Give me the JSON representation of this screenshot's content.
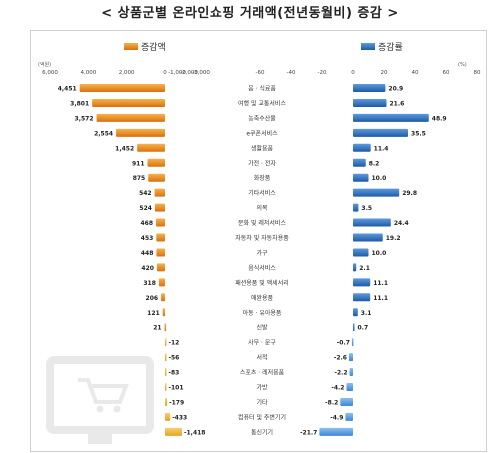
{
  "page_title": "< 상품군별 온라인쇼핑 거래액(전년동월비) 증감 >",
  "chart_data": [
    {
      "type": "bar",
      "orientation": "horizontal",
      "legend": "증감액",
      "unit_label": "(억원)",
      "ticks": [
        "6,000",
        "4,000",
        "2,000",
        "0",
        "-1,000",
        "-2,000",
        "-3,000"
      ],
      "categories": [
        "음 · 식료품",
        "여행 및 교통서비스",
        "농축수산물",
        "e쿠폰서비스",
        "생활용품",
        "가전 · 전자",
        "화장품",
        "기타서비스",
        "의복",
        "문화 및 레저서비스",
        "자동차 및 자동차용품",
        "가구",
        "음식서비스",
        "패션용품 및 액세서리",
        "애완용품",
        "아동 · 유아용품",
        "신발",
        "사무 · 문구",
        "서적",
        "스포츠 · 레저용품",
        "가방",
        "기타",
        "컴퓨터 및 주변기기",
        "통신기기"
      ],
      "values": [
        4451,
        3801,
        3572,
        2554,
        1452,
        911,
        875,
        542,
        524,
        468,
        453,
        448,
        420,
        318,
        206,
        121,
        21,
        -12,
        -56,
        -83,
        -101,
        -179,
        -433,
        -1418
      ],
      "value_labels": [
        "4,451",
        "3,801",
        "3,572",
        "2,554",
        "1,452",
        "911",
        "875",
        "542",
        "524",
        "468",
        "453",
        "448",
        "420",
        "318",
        "206",
        "121",
        "21",
        "-12",
        "-56",
        "-83",
        "-101",
        "-179",
        "-433",
        "-1,418"
      ],
      "colors": {
        "positive": "#e8871e",
        "negative": "#f2b23c"
      }
    },
    {
      "type": "bar",
      "orientation": "horizontal",
      "legend": "증감률",
      "unit_label": "(%)",
      "ticks": [
        "-60",
        "-40",
        "-20",
        "0",
        "20",
        "40",
        "60",
        "80",
        "100"
      ],
      "categories": [
        "음 · 식료품",
        "여행 및 교통서비스",
        "농축수산물",
        "e쿠폰서비스",
        "생활용품",
        "가전 · 전자",
        "화장품",
        "기타서비스",
        "의복",
        "문화 및 레저서비스",
        "자동차 및 자동차용품",
        "가구",
        "음식서비스",
        "패션용품 및 액세서리",
        "애완용품",
        "아동 · 유아용품",
        "신발",
        "사무 · 문구",
        "서적",
        "스포츠 · 레저용품",
        "가방",
        "기타",
        "컴퓨터 및 주변기기",
        "통신기기"
      ],
      "values": [
        20.9,
        21.6,
        48.9,
        35.5,
        11.4,
        8.2,
        10.0,
        29.8,
        3.5,
        24.4,
        19.2,
        10.0,
        2.1,
        11.1,
        11.1,
        3.1,
        0.7,
        -0.7,
        -2.6,
        -2.2,
        -4.2,
        -8.2,
        -4.9,
        -21.7
      ],
      "value_labels": [
        "20.9",
        "21.6",
        "48.9",
        "35.5",
        "11.4",
        "8.2",
        "10.0",
        "29.8",
        "3.5",
        "24.4",
        "19.2",
        "10.0",
        "2.1",
        "11.1",
        "11.1",
        "3.1",
        "0.7",
        "-0.7",
        "-2.6",
        "-2.2",
        "-4.2",
        "-8.2",
        "-4.9",
        "-21.7"
      ],
      "colors": {
        "positive": "#2f6fb6",
        "negative": "#4a90d9"
      }
    }
  ]
}
